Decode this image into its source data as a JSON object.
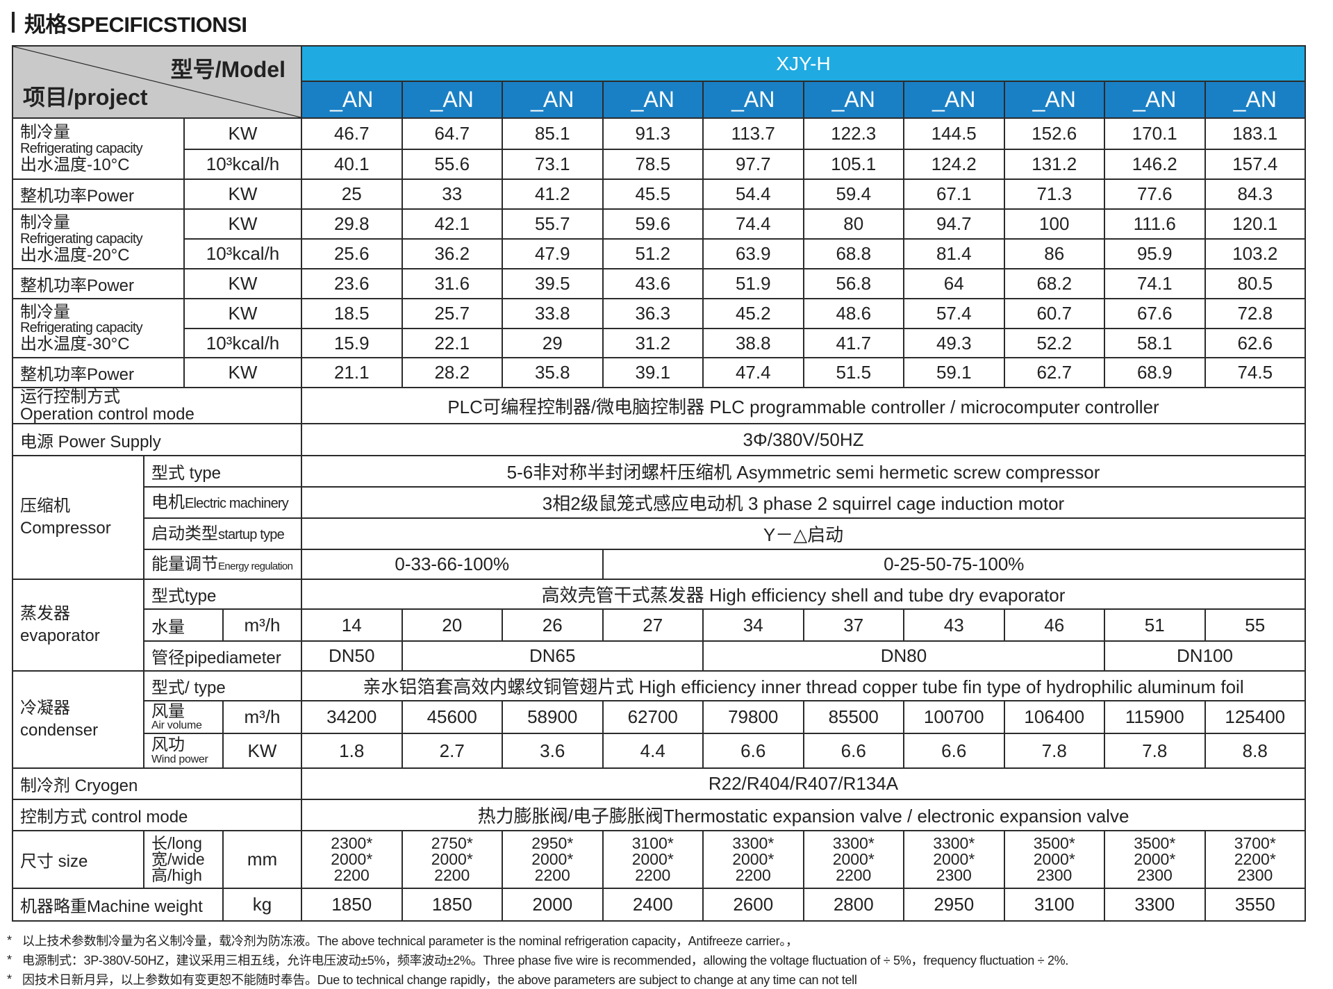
{
  "title": "规格SPECIFICSTIONSI",
  "header": {
    "model_label": "型号/Model",
    "project_label": "项目/project",
    "series": "XJY-H",
    "models": [
      "_AN",
      "_AN",
      "_AN",
      "_AN",
      "_AN",
      "_AN",
      "_AN",
      "_AN",
      "_AN",
      "_AN"
    ]
  },
  "colors": {
    "header_grey": "#c9c9c9",
    "series_blue": "#1faae2",
    "model_blue": "#1a80c5",
    "border": "#2b2b2b"
  },
  "cooling_sections": [
    {
      "label_cn": "制冷量",
      "label_en": "Refrigerating capacity",
      "label_temp": "出水温度-10°C",
      "unit_kw": "KW",
      "unit_kcal": "10³kcal/h",
      "kw": [
        "46.7",
        "64.7",
        "85.1",
        "91.3",
        "113.7",
        "122.3",
        "144.5",
        "152.6",
        "170.1",
        "183.1"
      ],
      "kcal": [
        "40.1",
        "55.6",
        "73.1",
        "78.5",
        "97.7",
        "105.1",
        "124.2",
        "131.2",
        "146.2",
        "157.4"
      ],
      "power_label": "整机功率Power",
      "power_unit": "KW",
      "power": [
        "25",
        "33",
        "41.2",
        "45.5",
        "54.4",
        "59.4",
        "67.1",
        "71.3",
        "77.6",
        "84.3"
      ]
    },
    {
      "label_cn": "制冷量",
      "label_en": "Refrigerating capacity",
      "label_temp": "出水温度-20°C",
      "unit_kw": "KW",
      "unit_kcal": "10³kcal/h",
      "kw": [
        "29.8",
        "42.1",
        "55.7",
        "59.6",
        "74.4",
        "80",
        "94.7",
        "100",
        "111.6",
        "120.1"
      ],
      "kcal": [
        "25.6",
        "36.2",
        "47.9",
        "51.2",
        "63.9",
        "68.8",
        "81.4",
        "86",
        "95.9",
        "103.2"
      ],
      "power_label": "整机功率Power",
      "power_unit": "KW",
      "power": [
        "23.6",
        "31.6",
        "39.5",
        "43.6",
        "51.9",
        "56.8",
        "64",
        "68.2",
        "74.1",
        "80.5"
      ]
    },
    {
      "label_cn": "制冷量",
      "label_en": "Refrigerating capacity",
      "label_temp": "出水温度-30°C",
      "unit_kw": "KW",
      "unit_kcal": "10³kcal/h",
      "kw": [
        "18.5",
        "25.7",
        "33.8",
        "36.3",
        "45.2",
        "48.6",
        "57.4",
        "60.7",
        "67.6",
        "72.8"
      ],
      "kcal": [
        "15.9",
        "22.1",
        "29",
        "31.2",
        "38.8",
        "41.7",
        "49.3",
        "52.2",
        "58.1",
        "62.6"
      ],
      "power_label": "整机功率Power",
      "power_unit": "KW",
      "power": [
        "21.1",
        "28.2",
        "35.8",
        "39.1",
        "47.4",
        "51.5",
        "59.1",
        "62.7",
        "68.9",
        "74.5"
      ]
    }
  ],
  "operation": {
    "label_cn": "运行控制方式",
    "label_en": "Operation control mode",
    "value": "PLC可编程控制器/微电脑控制器 PLC programmable controller / microcomputer controller"
  },
  "power_supply": {
    "label": "电源 Power Supply",
    "value": "3Φ/380V/50HZ"
  },
  "compressor": {
    "label_cn": "压缩机",
    "label_en": "Compressor",
    "type_label": "型式 type",
    "type_value": "5-6非对称半封闭螺杆压缩机 Asymmetric semi hermetic screw compressor",
    "motor_label_cn": "电机",
    "motor_label_en": "Electric machinery",
    "motor_value": "3相2级鼠笼式感应电动机 3 phase 2 squirrel cage induction motor",
    "startup_label_cn": "启动类型",
    "startup_label_en": "startup type",
    "startup_value": "Y－△启动",
    "energy_label_cn": "能量调节",
    "energy_label_en": "Energy regulation",
    "energy_values": [
      {
        "value": "0-33-66-100%",
        "span": 3
      },
      {
        "value": "0-25-50-75-100%",
        "span": 7
      }
    ]
  },
  "evaporator": {
    "label_cn": "蒸发器",
    "label_en": "evaporator",
    "type_label": "型式type",
    "type_value": "高效壳管干式蒸发器 High efficiency shell and tube dry evaporator",
    "water_label": "水量",
    "water_unit": "m³/h",
    "water": [
      "14",
      "20",
      "26",
      "27",
      "34",
      "37",
      "43",
      "46",
      "51",
      "55"
    ],
    "pipe_label": "管径pipediameter",
    "pipe": [
      {
        "value": "DN50",
        "span": 1
      },
      {
        "value": "DN65",
        "span": 3
      },
      {
        "value": "DN80",
        "span": 4
      },
      {
        "value": "DN100",
        "span": 2
      }
    ]
  },
  "condenser": {
    "label_cn": "冷凝器",
    "label_en": "condenser",
    "type_label": "型式/ type",
    "type_value": "亲水铝箔套高效内螺纹铜管翅片式 High efficiency inner thread copper tube fin type of hydrophilic aluminum foil",
    "air_label_cn": "风量",
    "air_label_en": "Air volume",
    "air_unit": "m³/h",
    "air": [
      "34200",
      "45600",
      "58900",
      "62700",
      "79800",
      "85500",
      "100700",
      "106400",
      "115900",
      "125400"
    ],
    "wind_label_cn": "风功",
    "wind_label_en": "Wind power",
    "wind_unit": "KW",
    "wind": [
      "1.8",
      "2.7",
      "3.6",
      "4.4",
      "6.6",
      "6.6",
      "6.6",
      "7.8",
      "7.8",
      "8.8"
    ]
  },
  "cryogen": {
    "label": "制冷剂 Cryogen",
    "value": "R22/R404/R407/R134A"
  },
  "control_mode": {
    "label": "控制方式 control mode",
    "value": "热力膨胀阀/电子膨胀阀Thermostatic expansion valve / electronic expansion valve"
  },
  "size": {
    "label": "尺寸 size",
    "dim_long": "长/long",
    "dim_wide": "宽/wide",
    "dim_high": "高/high",
    "unit": "mm",
    "values": [
      {
        "long": "2300*",
        "wide": "2000*",
        "high": "2200"
      },
      {
        "long": "2750*",
        "wide": "2000*",
        "high": "2200"
      },
      {
        "long": "2950*",
        "wide": "2000*",
        "high": "2200"
      },
      {
        "long": "3100*",
        "wide": "2000*",
        "high": "2200"
      },
      {
        "long": "3300*",
        "wide": "2000*",
        "high": "2200"
      },
      {
        "long": "3300*",
        "wide": "2000*",
        "high": "2200"
      },
      {
        "long": "3300*",
        "wide": "2000*",
        "high": "2300"
      },
      {
        "long": "3500*",
        "wide": "2000*",
        "high": "2300"
      },
      {
        "long": "3500*",
        "wide": "2000*",
        "high": "2300"
      },
      {
        "long": "3700*",
        "wide": "2200*",
        "high": "2300"
      }
    ]
  },
  "weight": {
    "label": "机器略重Machine weight",
    "unit": "kg",
    "values": [
      "1850",
      "1850",
      "2000",
      "2400",
      "2600",
      "2800",
      "2950",
      "3100",
      "3300",
      "3550"
    ]
  },
  "notes": {
    "marker": "*",
    "lines": [
      "以上技术参数制冷量为名义制冷量，载冷剂为防冻液。The above technical parameter is the nominal refrigeration capacity，Antifreeze carrier。，",
      "电源制式：3P-380V-50HZ，建议采用三相五线，允许电压波动±5%，频率波动±2%。Three phase five wire is recommended，allowing the voltage fluctuation of ÷ 5%，frequency fluctuation ÷ 2%.",
      "因技术日新月异，以上参数如有变更恕不能随时奉告。Due to technical change rapidly，the above parameters are subject to change at any time can not tell"
    ]
  }
}
